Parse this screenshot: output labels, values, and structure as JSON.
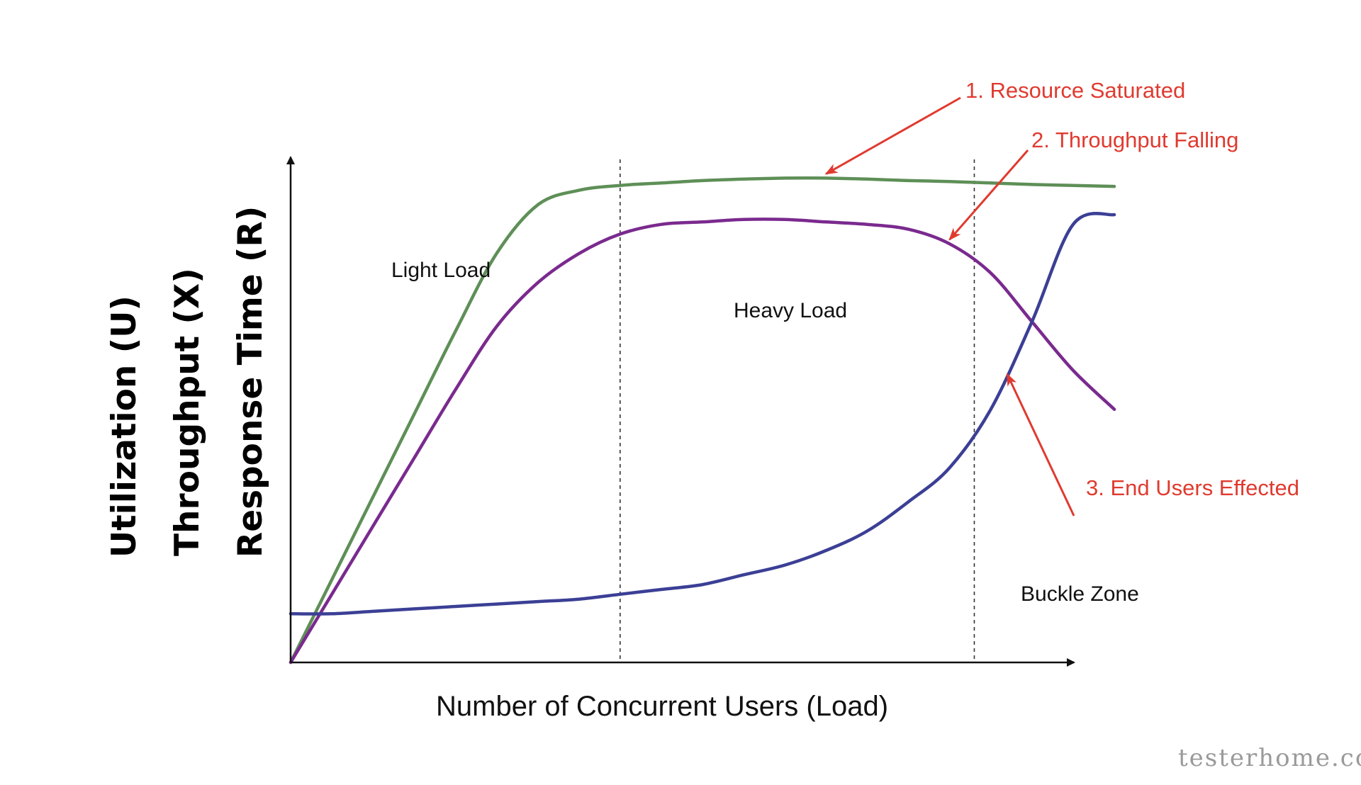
{
  "chart_data": {
    "type": "line",
    "xlabel": "Number of  Concurrent Users (Load)",
    "ylabels": [
      {
        "text": "Utilization (U)",
        "color": "#5e8f57"
      },
      {
        "text": "Throughput (X)",
        "color": "#7a2a8e"
      },
      {
        "text": "Response Time (R)",
        "color": "#3b3f95"
      }
    ],
    "x": [
      0,
      5,
      10,
      15,
      20,
      25,
      30,
      35,
      40,
      45,
      50,
      55,
      60,
      65,
      70,
      75,
      80,
      85,
      90,
      95,
      100
    ],
    "series": [
      {
        "key": "utilization",
        "color": "#5e8f57",
        "values": [
          0,
          0.17,
          0.34,
          0.51,
          0.68,
          0.84,
          0.94,
          0.97,
          0.98,
          0.985,
          0.99,
          0.993,
          0.995,
          0.995,
          0.993,
          0.99,
          0.988,
          0.985,
          0.982,
          0.98,
          0.978
        ]
      },
      {
        "key": "throughput",
        "color": "#7a2a8e",
        "values": [
          0,
          0.14,
          0.28,
          0.42,
          0.56,
          0.69,
          0.78,
          0.84,
          0.88,
          0.9,
          0.905,
          0.91,
          0.91,
          0.905,
          0.9,
          0.89,
          0.86,
          0.8,
          0.7,
          0.6,
          0.52
        ]
      },
      {
        "key": "response_time",
        "color": "#3b3f95",
        "values": [
          0.1,
          0.1,
          0.105,
          0.11,
          0.115,
          0.12,
          0.125,
          0.13,
          0.14,
          0.15,
          0.16,
          0.18,
          0.2,
          0.23,
          0.27,
          0.33,
          0.4,
          0.52,
          0.7,
          0.9,
          0.92
        ]
      }
    ],
    "xlim": [
      0,
      100
    ],
    "ylim": [
      0,
      1
    ],
    "zones": [
      "Light Load",
      "Heavy Load",
      "Buckle Zone"
    ],
    "zone_boundaries": [
      40,
      83
    ],
    "annotations": [
      {
        "text": "1. Resource Saturated",
        "color": "#e03a2f",
        "target_series": "utilization",
        "target_x": 65
      },
      {
        "text": "2. Throughput Falling",
        "color": "#e03a2f",
        "target_series": "throughput",
        "target_x": 80
      },
      {
        "text": "3. End Users Effected",
        "color": "#e03a2f",
        "target_series": "response_time",
        "target_x": 87
      }
    ],
    "grid": false,
    "legend": "none"
  },
  "watermark": "testerhome.com"
}
